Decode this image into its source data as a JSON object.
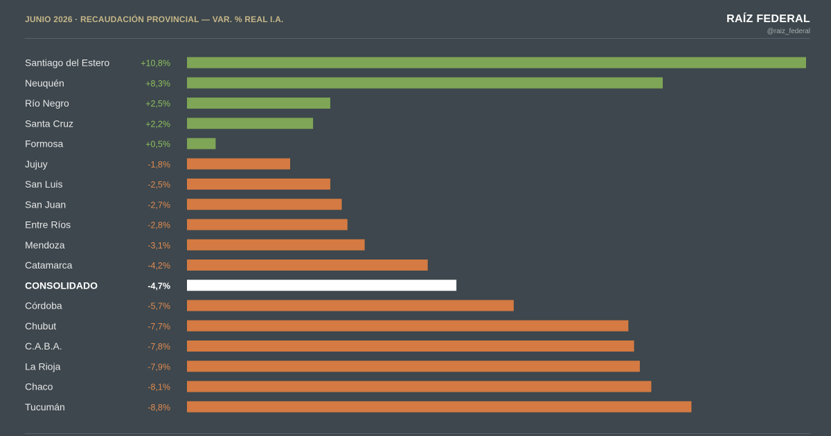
{
  "header": {
    "title": "JUNIO 2026 · RECAUDACIÓN PROVINCIAL — VAR. % REAL I.A.",
    "brand": "RAÍZ FEDERAL",
    "handle": "@raiz_federal"
  },
  "colors": {
    "positive": "#7fa556",
    "negative": "#d47a42",
    "highlight": "#ffffff",
    "background": "#3d474d",
    "positive_text": "#8fbf5e",
    "negative_text": "#e08a50"
  },
  "chart_data": {
    "type": "bar",
    "orientation": "horizontal",
    "title": "JUNIO 2026 · RECAUDACIÓN PROVINCIAL — VAR. % REAL I.A.",
    "bar_length": "absolute value",
    "grid": false,
    "categories": [
      "Santiago del Estero",
      "Neuquén",
      "Río Negro",
      "Santa Cruz",
      "Formosa",
      "Jujuy",
      "San Luis",
      "San Juan",
      "Entre Ríos",
      "Mendoza",
      "Catamarca",
      "CONSOLIDADO",
      "Córdoba",
      "Chubut",
      "C.A.B.A.",
      "La Rioja",
      "Chaco",
      "Tucumán"
    ],
    "values": [
      10.8,
      8.3,
      2.5,
      2.2,
      0.5,
      -1.8,
      -2.5,
      -2.7,
      -2.8,
      -3.1,
      -4.2,
      -4.7,
      -5.7,
      -7.7,
      -7.8,
      -7.9,
      -8.1,
      -8.8
    ],
    "value_labels": [
      "+10,8%",
      "+8,3%",
      "+2,5%",
      "+2,2%",
      "+0,5%",
      "-1,8%",
      "-2,5%",
      "-2,7%",
      "-2,8%",
      "-3,1%",
      "-4,2%",
      "-4,7%",
      "-5,7%",
      "-7,7%",
      "-7,8%",
      "-7,9%",
      "-8,1%",
      "-8,8%"
    ],
    "highlight": "CONSOLIDADO",
    "xlim": [
      0,
      10.8
    ]
  }
}
